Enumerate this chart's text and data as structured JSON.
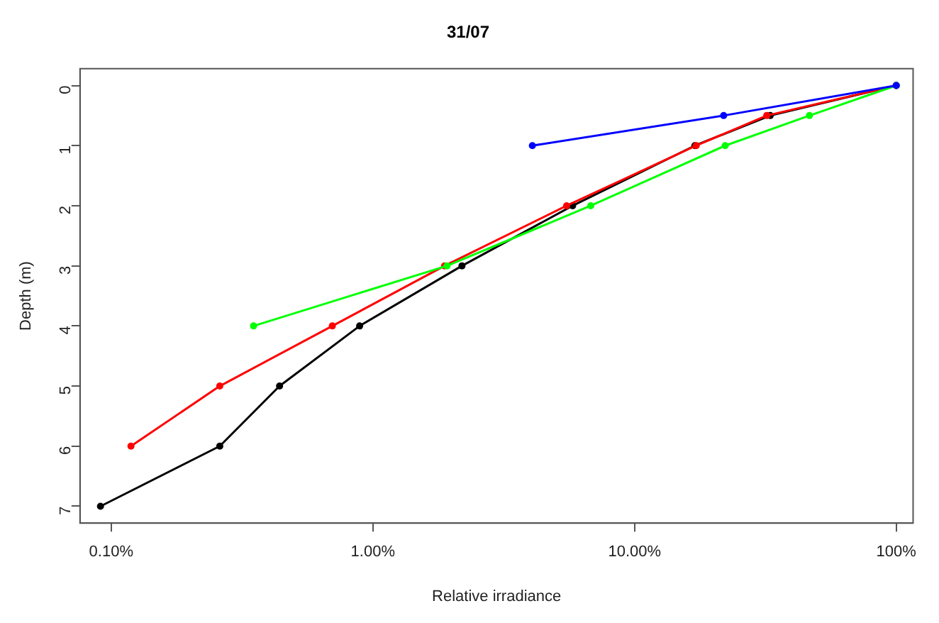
{
  "chart_data": {
    "type": "line",
    "title": "31/07",
    "xlabel": "Relative irradiance",
    "ylabel": "Depth (m)",
    "log": "x",
    "grid": false,
    "legend": false,
    "marker": "circle",
    "line_style": "solid",
    "xlim": [
      0.076,
      116
    ],
    "xticks": [
      {
        "value": 0.1,
        "label": "0.10%"
      },
      {
        "value": 1,
        "label": "1.00%"
      },
      {
        "value": 10,
        "label": "10.00%"
      },
      {
        "value": 100,
        "label": "100%"
      }
    ],
    "ylim": [
      7.28,
      -0.28
    ],
    "yticks": [
      0,
      1,
      2,
      3,
      4,
      5,
      6,
      7
    ],
    "series": [
      {
        "color": "#000000",
        "x": [
          100,
          33,
          17,
          5.8,
          2.19,
          0.89,
          0.44,
          0.26,
          0.091
        ],
        "values": [
          0,
          0.5,
          1,
          2,
          3,
          4,
          5,
          6,
          7
        ]
      },
      {
        "color": "#ff0000",
        "x": [
          100,
          32,
          17.2,
          5.5,
          1.88,
          0.7,
          0.26,
          0.119
        ],
        "values": [
          0,
          0.5,
          1,
          2,
          3,
          4,
          5,
          6
        ]
      },
      {
        "color": "#00ff00",
        "x": [
          100,
          46.6,
          22.2,
          6.8,
          1.92,
          0.35
        ],
        "values": [
          0,
          0.5,
          1,
          2,
          3,
          4
        ]
      },
      {
        "color": "#0000ff",
        "x": [
          100,
          21.9,
          4.07
        ],
        "values": [
          0,
          0.5,
          1
        ]
      }
    ]
  }
}
